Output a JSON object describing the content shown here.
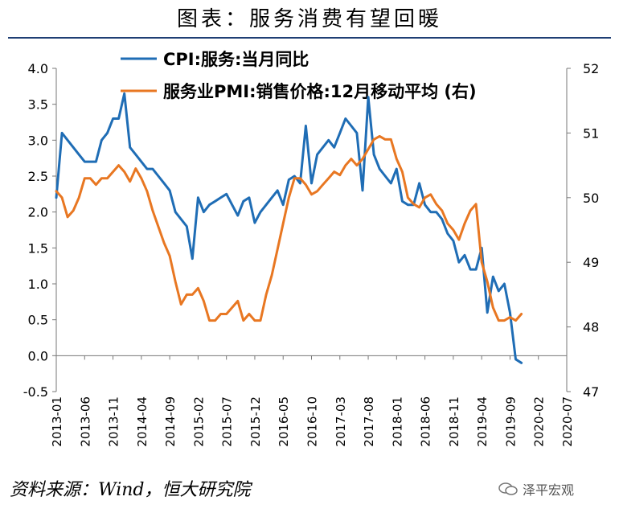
{
  "title": "图表：服务消费有望回暖",
  "source": "资料来源：Wind，恒大研究院",
  "watermark": "泽平宏观",
  "chart_data": {
    "type": "line",
    "left_axis": {
      "ylim": [
        -0.5,
        4.0
      ],
      "ticks": [
        "4.0",
        "3.5",
        "3.0",
        "2.5",
        "2.0",
        "1.5",
        "1.0",
        "0.5",
        "0.0",
        "-0.5"
      ]
    },
    "right_axis": {
      "ylim": [
        47,
        52
      ],
      "ticks": [
        "52",
        "51",
        "50",
        "49",
        "48",
        "47"
      ]
    },
    "x_ticks": [
      "2013-01",
      "2013-06",
      "2013-11",
      "2014-04",
      "2014-09",
      "2015-02",
      "2015-07",
      "2015-12",
      "2016-05",
      "2016-10",
      "2017-03",
      "2017-08",
      "2018-01",
      "2018-06",
      "2018-11",
      "2019-04",
      "2019-09",
      "2020-02",
      "2020-07"
    ],
    "series": [
      {
        "name": "CPI:服务:当月同比",
        "axis": "left",
        "color": "#1f6db5",
        "start": "2013-01",
        "values": [
          2.2,
          3.1,
          3.0,
          2.9,
          2.8,
          2.7,
          2.7,
          2.7,
          3.0,
          3.1,
          3.3,
          3.3,
          3.65,
          2.9,
          2.8,
          2.7,
          2.6,
          2.6,
          2.5,
          2.4,
          2.3,
          2.0,
          1.9,
          1.8,
          1.35,
          2.2,
          2.0,
          2.1,
          2.15,
          2.2,
          2.25,
          2.1,
          1.95,
          2.15,
          2.2,
          1.85,
          2.0,
          2.1,
          2.2,
          2.3,
          2.1,
          2.45,
          2.5,
          2.4,
          3.2,
          2.4,
          2.8,
          2.9,
          3.0,
          2.9,
          3.1,
          3.3,
          3.2,
          3.1,
          2.3,
          3.6,
          2.8,
          2.6,
          2.5,
          2.4,
          2.6,
          2.15,
          2.1,
          2.1,
          2.4,
          2.1,
          2.0,
          2.0,
          1.9,
          1.7,
          1.6,
          1.3,
          1.4,
          1.2,
          1.2,
          1.5,
          0.6,
          1.1,
          0.9,
          1.0,
          0.6,
          -0.05,
          -0.1
        ]
      },
      {
        "name": "服务业PMI:销售价格:12月移动平均 (右)",
        "axis": "right",
        "color": "#e87722",
        "start": "2013-01",
        "values": [
          50.1,
          50.0,
          49.7,
          49.8,
          50.0,
          50.3,
          50.3,
          50.2,
          50.3,
          50.3,
          50.4,
          50.5,
          50.4,
          50.25,
          50.45,
          50.3,
          50.1,
          49.8,
          49.55,
          49.3,
          49.1,
          48.7,
          48.35,
          48.5,
          48.5,
          48.6,
          48.4,
          48.1,
          48.1,
          48.2,
          48.2,
          48.3,
          48.4,
          48.1,
          48.2,
          48.1,
          48.1,
          48.5,
          48.8,
          49.2,
          49.6,
          50.0,
          50.3,
          50.3,
          50.2,
          50.05,
          50.1,
          50.2,
          50.3,
          50.4,
          50.35,
          50.5,
          50.6,
          50.5,
          50.6,
          50.75,
          50.9,
          50.95,
          50.9,
          50.9,
          50.6,
          50.4,
          50.0,
          49.9,
          49.85,
          50.0,
          50.05,
          49.9,
          49.8,
          49.6,
          49.5,
          49.35,
          49.6,
          49.8,
          49.9,
          49.0,
          48.7,
          48.3,
          48.1,
          48.1,
          48.15,
          48.1,
          48.2
        ]
      }
    ],
    "grid": false,
    "legend_position": "top"
  }
}
